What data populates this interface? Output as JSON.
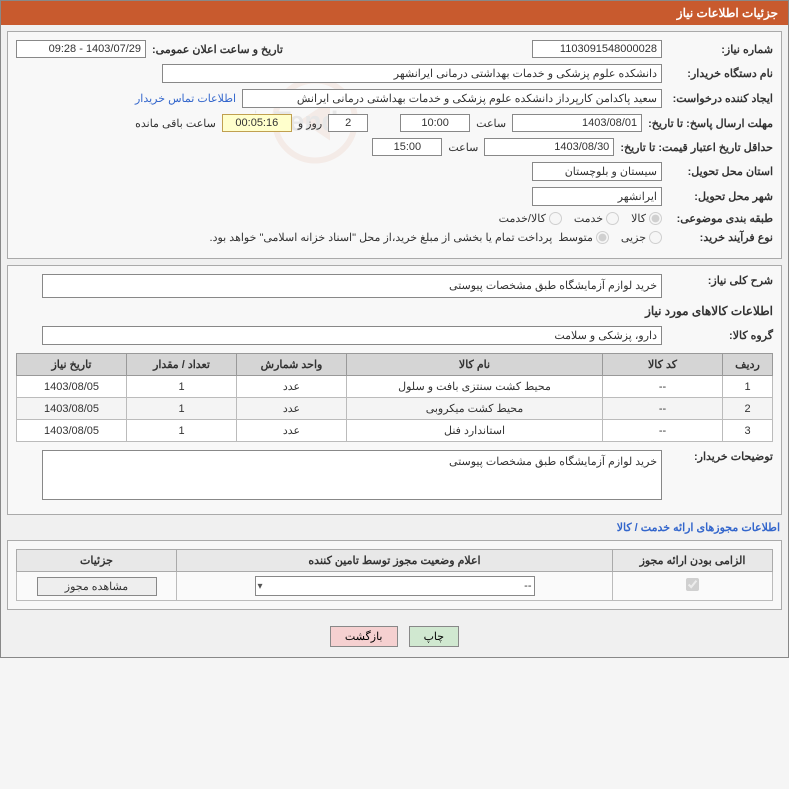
{
  "panel_title": "جزئیات اطلاعات نیاز",
  "top": {
    "need_number_label": "شماره نیاز:",
    "need_number": "1103091548000028",
    "announce_label": "تاریخ و ساعت اعلان عمومی:",
    "announce_value": "1403/07/29 - 09:28",
    "buyer_label": "نام دستگاه خریدار:",
    "buyer_value": "دانشکده علوم پزشکی و خدمات بهداشتی درمانی ایرانشهر",
    "requester_label": "ایجاد کننده درخواست:",
    "requester_value": "سعید پاکدامن کارپرداز دانشکده علوم پزشکی و خدمات بهداشتی درمانی ایرانش",
    "contact_link": "اطلاعات تماس خریدار",
    "deadline_label": "مهلت ارسال پاسخ: تا تاریخ:",
    "deadline_date": "1403/08/01",
    "time_label": "ساعت",
    "deadline_time": "10:00",
    "days_value": "2",
    "days_label": "روز و",
    "counter": "00:05:16",
    "remaining_label": "ساعت باقی مانده",
    "validity_label": "حداقل تاریخ اعتبار قیمت: تا تاریخ:",
    "validity_date": "1403/08/30",
    "validity_time": "15:00",
    "province_label": "استان محل تحویل:",
    "province_value": "سیستان و بلوچستان",
    "city_label": "شهر محل تحویل:",
    "city_value": "ایرانشهر",
    "category_label": "طبقه بندی موضوعی:",
    "cat_goods": "کالا",
    "cat_service": "خدمت",
    "cat_both": "کالا/خدمت",
    "process_label": "نوع فرآیند خرید:",
    "proc_partial": "جزیی",
    "proc_medium": "متوسط",
    "process_note": "پرداخت تمام یا بخشی از مبلغ خرید،از محل \"اسناد خزانه اسلامی\" خواهد بود."
  },
  "details": {
    "summary_label": "شرح کلی نیاز:",
    "summary_text": "خرید لوازم آزمایشگاه طبق مشخصات پیوستی",
    "goods_info_label": "اطلاعات کالاهای مورد نیاز",
    "group_label": "گروه کالا:",
    "group_value": "دارو، پزشکی و سلامت",
    "columns": {
      "row": "ردیف",
      "code": "کد کالا",
      "name": "نام کالا",
      "unit": "واحد شمارش",
      "qty": "تعداد / مقدار",
      "date": "تاریخ نیاز"
    },
    "rows": [
      {
        "row": "1",
        "code": "--",
        "name": "محیط کشت سنتزی بافت و سلول",
        "unit": "عدد",
        "qty": "1",
        "date": "1403/08/05"
      },
      {
        "row": "2",
        "code": "--",
        "name": "محیط کشت میکروبی",
        "unit": "عدد",
        "qty": "1",
        "date": "1403/08/05"
      },
      {
        "row": "3",
        "code": "--",
        "name": "استاندارد فنل",
        "unit": "عدد",
        "qty": "1",
        "date": "1403/08/05"
      }
    ],
    "buyer_notes_label": "توضیحات خریدار:",
    "buyer_notes": "خرید لوازم آزمایشگاه طبق مشخصات پیوستی"
  },
  "permits": {
    "section_label": "اطلاعات مجوزهای ارائه خدمت / کالا",
    "cols": {
      "required": "الزامی بودن ارائه مجوز",
      "status": "اعلام وضعیت مجوز توسط تامین کننده",
      "details": "جزئیات"
    },
    "dropdown_value": "--",
    "view_btn": "مشاهده مجوز"
  },
  "footer": {
    "print": "چاپ",
    "back": "بازگشت"
  },
  "colors": {
    "header_bg": "#c85a2e",
    "counter_bg": "#ffffcc",
    "link": "#3366cc"
  }
}
